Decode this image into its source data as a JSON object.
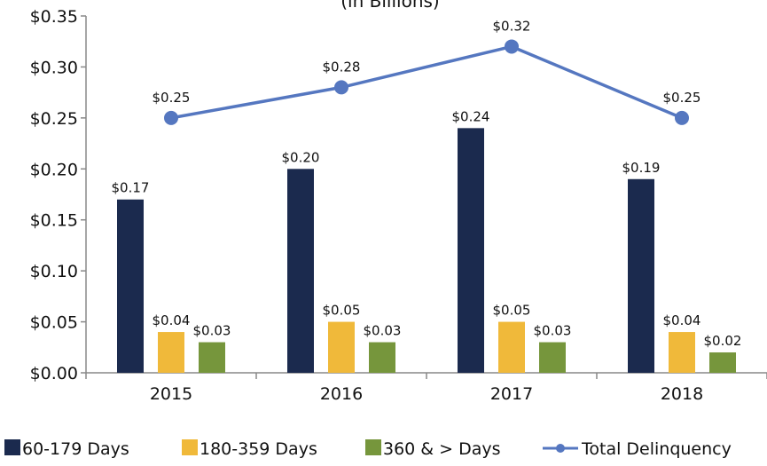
{
  "chart_data": {
    "type": "bar",
    "subtitle": "(in Billions)",
    "categories": [
      "2015",
      "2016",
      "2017",
      "2018"
    ],
    "series": [
      {
        "name": "60-179 Days",
        "color": "#1b2a4e",
        "values": [
          0.17,
          0.2,
          0.24,
          0.19
        ],
        "value_labels": [
          "$0.17",
          "$0.20",
          "$0.24",
          "$0.19"
        ]
      },
      {
        "name": "180-359 Days",
        "color": "#f0b93a",
        "values": [
          0.04,
          0.05,
          0.05,
          0.04
        ],
        "value_labels": [
          "$0.04",
          "$0.05",
          "$0.05",
          "$0.04"
        ]
      },
      {
        "name": "360 & > Days",
        "color": "#76963c",
        "values": [
          0.03,
          0.03,
          0.03,
          0.02
        ],
        "value_labels": [
          "$0.03",
          "$0.03",
          "$0.03",
          "$0.02"
        ]
      },
      {
        "name": "Total Delinquency",
        "type": "line",
        "color": "#5577c0",
        "values": [
          0.25,
          0.28,
          0.32,
          0.25
        ],
        "value_labels": [
          "$0.25",
          "$0.28",
          "$0.32",
          "$0.25"
        ]
      }
    ],
    "ylim": [
      0,
      0.35
    ],
    "yticks": [
      {
        "value": 0,
        "label": "$0.00"
      },
      {
        "value": 0.05,
        "label": "$0.05"
      },
      {
        "value": 0.1,
        "label": "$0.10"
      },
      {
        "value": 0.15,
        "label": "$0.15"
      },
      {
        "value": 0.2,
        "label": "$0.20"
      },
      {
        "value": 0.25,
        "label": "$0.25"
      },
      {
        "value": 0.3,
        "label": "$0.30"
      },
      {
        "value": 0.35,
        "label": "$0.35"
      }
    ],
    "legend": "bottom"
  }
}
